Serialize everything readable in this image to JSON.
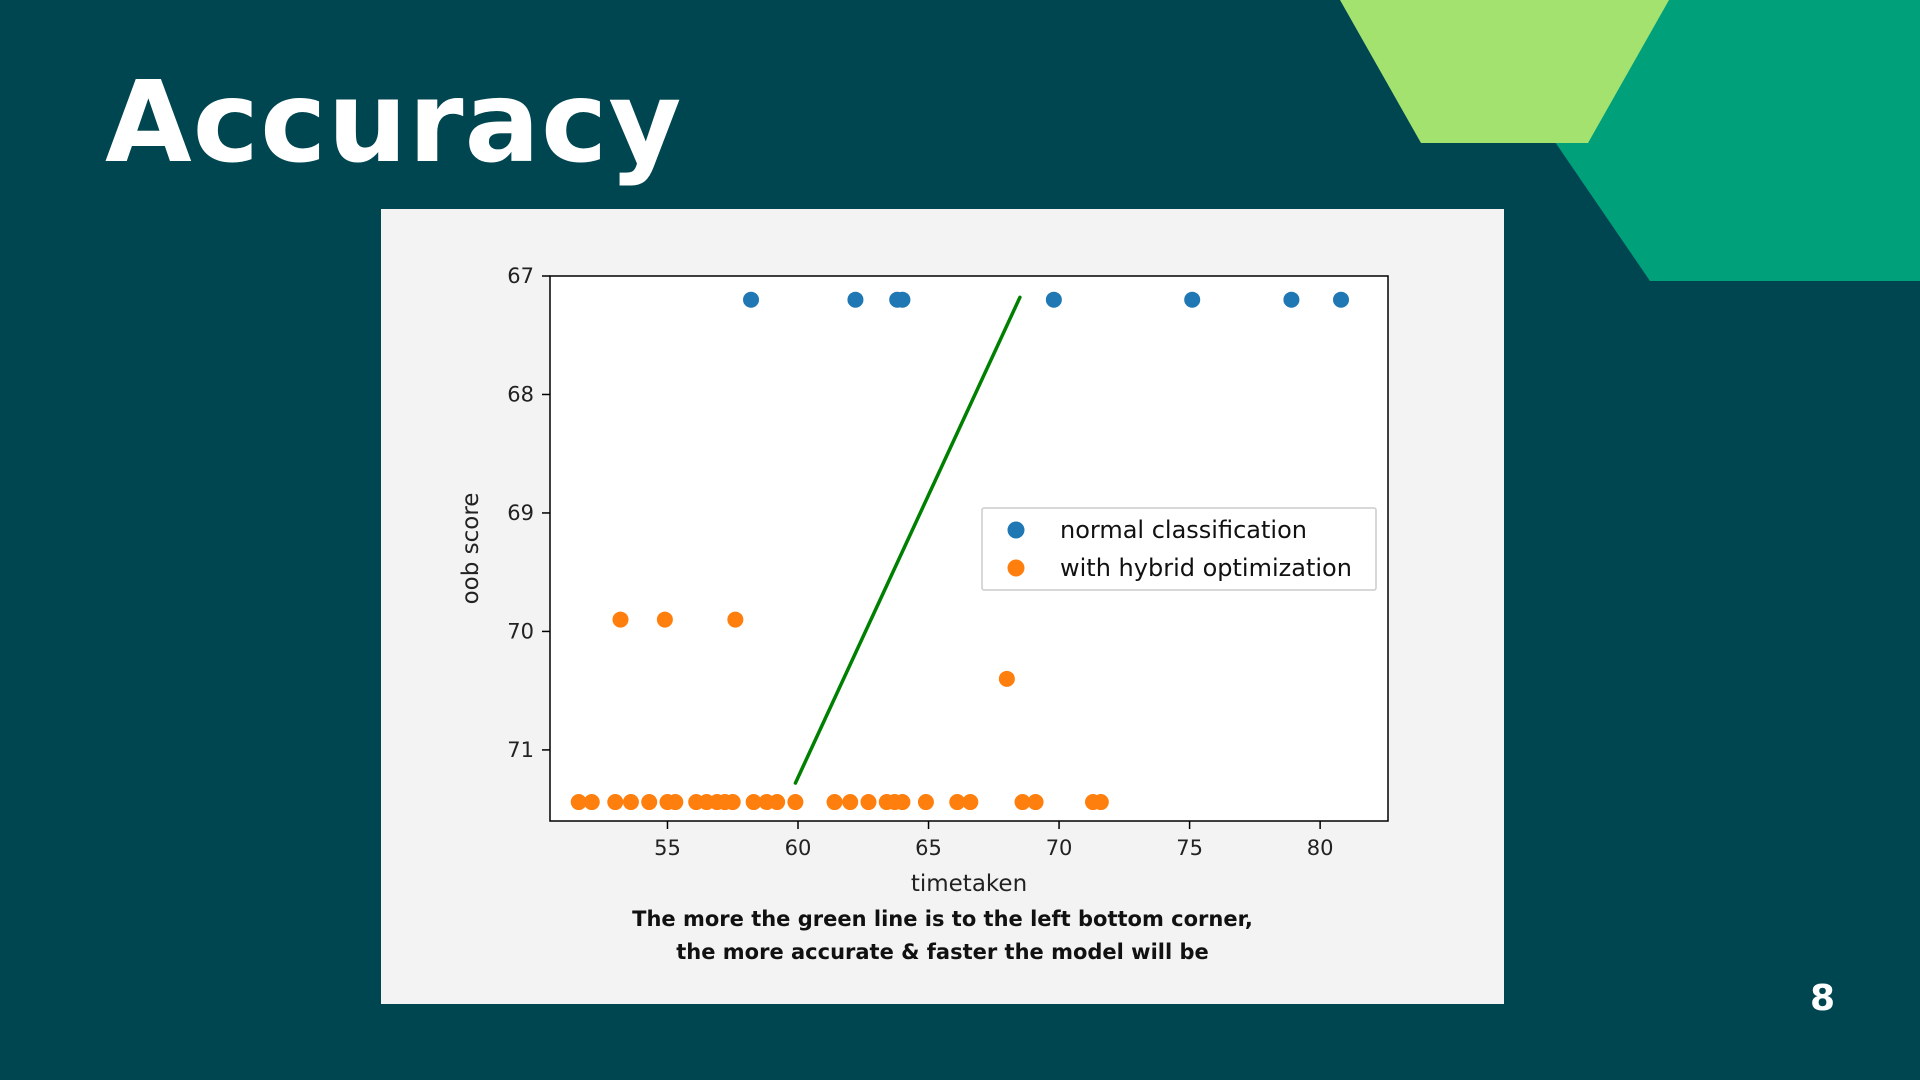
{
  "slide": {
    "title": "Accuracy",
    "page_number": "8",
    "caption_line1": "The more the green line is to the left bottom corner,",
    "caption_line2": "the more accurate & faster the model will be",
    "colors": {
      "background": "#004651",
      "deco_light_green": "#a3e26f",
      "deco_teal": "#00a07b",
      "card": "#f3f3f3"
    }
  },
  "chart_data": {
    "type": "scatter",
    "xlabel": "timetaken",
    "ylabel": "oob score",
    "xlim": [
      50.5,
      82.6
    ],
    "ylim": [
      71.6,
      67
    ],
    "y_inverted": true,
    "x_ticks": [
      "55",
      "60",
      "65",
      "70",
      "75",
      "80"
    ],
    "y_ticks": [
      "67",
      "68",
      "69",
      "70",
      "71"
    ],
    "grid": false,
    "legend_position": "center-right",
    "series": [
      {
        "name": "normal classification",
        "color": "#1f77b4",
        "points": [
          [
            58.2,
            67.2
          ],
          [
            62.2,
            67.2
          ],
          [
            63.8,
            67.2
          ],
          [
            64.0,
            67.2
          ],
          [
            69.8,
            67.2
          ],
          [
            75.1,
            67.2
          ],
          [
            78.9,
            67.2
          ],
          [
            80.8,
            67.2
          ]
        ]
      },
      {
        "name": "with hybrid optimization",
        "color": "#ff7f0e",
        "points": [
          [
            53.2,
            69.9
          ],
          [
            54.9,
            69.9
          ],
          [
            57.6,
            69.9
          ],
          [
            68.0,
            70.4
          ],
          [
            51.6,
            71.44
          ],
          [
            52.1,
            71.44
          ],
          [
            53.0,
            71.44
          ],
          [
            53.6,
            71.44
          ],
          [
            54.3,
            71.44
          ],
          [
            55.0,
            71.44
          ],
          [
            55.3,
            71.44
          ],
          [
            56.1,
            71.44
          ],
          [
            56.5,
            71.44
          ],
          [
            56.9,
            71.44
          ],
          [
            57.2,
            71.44
          ],
          [
            57.5,
            71.44
          ],
          [
            58.3,
            71.44
          ],
          [
            58.8,
            71.44
          ],
          [
            59.2,
            71.44
          ],
          [
            59.9,
            71.44
          ],
          [
            61.4,
            71.44
          ],
          [
            62.0,
            71.44
          ],
          [
            62.7,
            71.44
          ],
          [
            63.4,
            71.44
          ],
          [
            63.7,
            71.44
          ],
          [
            64.0,
            71.44
          ],
          [
            64.9,
            71.44
          ],
          [
            66.1,
            71.44
          ],
          [
            66.6,
            71.44
          ],
          [
            68.6,
            71.44
          ],
          [
            69.1,
            71.44
          ],
          [
            71.3,
            71.44
          ],
          [
            71.6,
            71.44
          ]
        ]
      },
      {
        "type": "line",
        "color": "#008000",
        "points": [
          [
            59.9,
            71.28
          ],
          [
            68.5,
            67.18
          ]
        ]
      }
    ]
  }
}
